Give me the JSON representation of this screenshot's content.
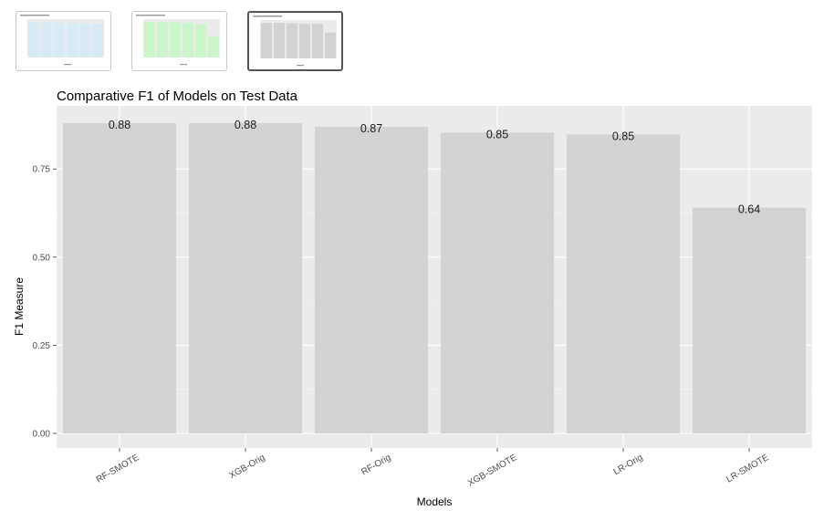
{
  "thumbnails": [
    {
      "name": "thumbnail-precision-chart",
      "bar_color": "#d6ebf5",
      "values": [
        0.9,
        0.89,
        0.88,
        0.88,
        0.87,
        0.86
      ],
      "selected": false
    },
    {
      "name": "thumbnail-recall-chart",
      "bar_color": "#c9f7c9",
      "values": [
        0.92,
        0.92,
        0.91,
        0.9,
        0.86,
        0.55
      ],
      "selected": false
    },
    {
      "name": "thumbnail-f1-chart",
      "bar_color": "#d3d3d3",
      "values": [
        0.88,
        0.88,
        0.87,
        0.85,
        0.85,
        0.64
      ],
      "selected": true
    }
  ],
  "chart_data": {
    "type": "bar",
    "title": "Comparative F1 of Models on Test Data",
    "xlabel": "Models",
    "ylabel": "F1 Measure",
    "categories": [
      "RF-SMOTE",
      "XGB-Orig",
      "RF-Orig",
      "XGB-SMOTE",
      "LR-Orig",
      "LR-SMOTE"
    ],
    "values": [
      0.88,
      0.88,
      0.87,
      0.853,
      0.848,
      0.64
    ],
    "data_labels": [
      "0.88",
      "0.88",
      "0.87",
      "0.85",
      "0.85",
      "0.64"
    ],
    "ylim": [
      0,
      0.88
    ],
    "yticks": [
      0.0,
      0.25,
      0.5,
      0.75
    ],
    "ytick_labels": [
      "0.00",
      "0.25",
      "0.50",
      "0.75"
    ],
    "bar_color": "#d3d3d3",
    "panel_color": "#ebebeb",
    "grid": true
  }
}
